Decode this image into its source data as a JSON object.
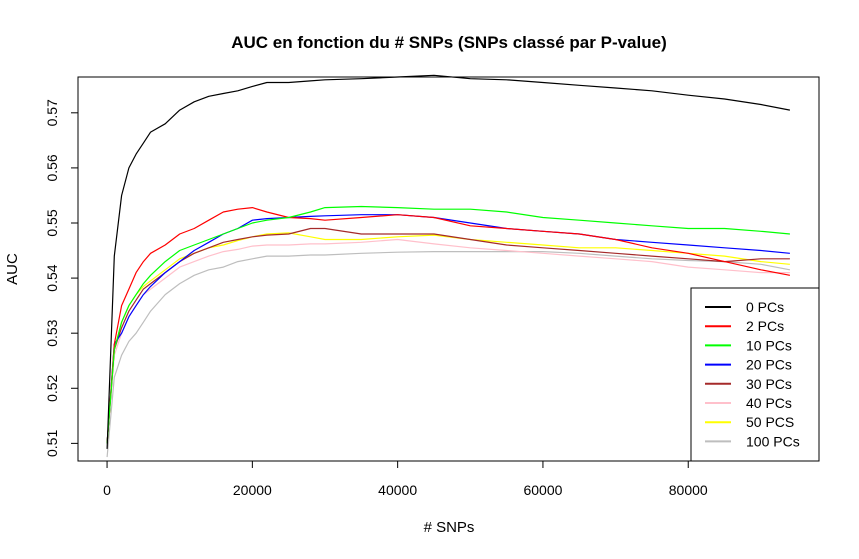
{
  "chart_data": {
    "type": "line",
    "title": "AUC en fonction du # SNPs (SNPs classé par P-value)",
    "xlabel": "# SNPs",
    "ylabel": "AUC",
    "xlim": [
      -4000,
      98000
    ],
    "ylim": [
      0.5068,
      0.5765
    ],
    "x_ticks": [
      0,
      20000,
      40000,
      60000,
      80000
    ],
    "y_ticks": [
      0.51,
      0.52,
      0.53,
      0.54,
      0.55,
      0.56,
      0.57
    ],
    "grid": false,
    "legend_position": "bottom-right",
    "x": [
      0,
      1000,
      2000,
      3000,
      4000,
      5000,
      6000,
      8000,
      10000,
      12000,
      14000,
      16000,
      18000,
      20000,
      22000,
      25000,
      28000,
      30000,
      35000,
      40000,
      45000,
      50000,
      55000,
      60000,
      65000,
      70000,
      75000,
      80000,
      85000,
      90000,
      94000
    ],
    "series": [
      {
        "name": "0 PCs",
        "color": "#000000",
        "values": [
          0.509,
          0.544,
          0.555,
          0.56,
          0.5625,
          0.5645,
          0.5665,
          0.568,
          0.5705,
          0.572,
          0.573,
          0.5735,
          0.574,
          0.5748,
          0.5755,
          0.5755,
          0.5758,
          0.576,
          0.5762,
          0.5765,
          0.5768,
          0.5762,
          0.576,
          0.5755,
          0.575,
          0.5745,
          0.574,
          0.5732,
          0.5725,
          0.5715,
          0.5705
        ]
      },
      {
        "name": "2 PCs",
        "color": "#ff0000",
        "values": [
          0.51,
          0.528,
          0.535,
          0.538,
          0.541,
          0.543,
          0.5445,
          0.546,
          0.548,
          0.549,
          0.5505,
          0.552,
          0.5525,
          0.5528,
          0.552,
          0.551,
          0.5508,
          0.5505,
          0.551,
          0.5515,
          0.551,
          0.5495,
          0.549,
          0.5485,
          0.548,
          0.547,
          0.5455,
          0.5445,
          0.543,
          0.5415,
          0.5405
        ]
      },
      {
        "name": "10 PCs",
        "color": "#00ff00",
        "values": [
          0.51,
          0.527,
          0.532,
          0.535,
          0.537,
          0.539,
          0.5405,
          0.543,
          0.545,
          0.546,
          0.547,
          0.548,
          0.549,
          0.55,
          0.5505,
          0.551,
          0.552,
          0.5528,
          0.553,
          0.5528,
          0.5525,
          0.5525,
          0.552,
          0.551,
          0.5505,
          0.55,
          0.5495,
          0.549,
          0.549,
          0.5485,
          0.548
        ]
      },
      {
        "name": "20 PCs",
        "color": "#0000ff",
        "values": [
          0.51,
          0.528,
          0.53,
          0.533,
          0.535,
          0.537,
          0.5385,
          0.541,
          0.543,
          0.545,
          0.5465,
          0.548,
          0.549,
          0.5505,
          0.5508,
          0.551,
          0.5512,
          0.5513,
          0.5515,
          0.5515,
          0.551,
          0.55,
          0.549,
          0.5485,
          0.548,
          0.547,
          0.5465,
          0.546,
          0.5455,
          0.545,
          0.5445
        ]
      },
      {
        "name": "30 PCs",
        "color": "#a52a2a",
        "values": [
          0.51,
          0.527,
          0.531,
          0.534,
          0.536,
          0.538,
          0.539,
          0.541,
          0.543,
          0.5445,
          0.5455,
          0.5465,
          0.547,
          0.5475,
          0.5478,
          0.548,
          0.549,
          0.549,
          0.548,
          0.548,
          0.548,
          0.547,
          0.546,
          0.5455,
          0.545,
          0.5445,
          0.544,
          0.5435,
          0.543,
          0.5435,
          0.5435
        ]
      },
      {
        "name": "40 PCs",
        "color": "#ffc0cb",
        "values": [
          0.51,
          0.526,
          0.53,
          0.533,
          0.535,
          0.537,
          0.538,
          0.54,
          0.542,
          0.543,
          0.544,
          0.5448,
          0.5452,
          0.5458,
          0.546,
          0.546,
          0.5462,
          0.5462,
          0.5465,
          0.547,
          0.5462,
          0.5455,
          0.545,
          0.5445,
          0.544,
          0.5435,
          0.543,
          0.542,
          0.5415,
          0.541,
          0.541
        ]
      },
      {
        "name": "50 PCS",
        "color": "#ffff00",
        "values": [
          0.51,
          0.527,
          0.532,
          0.535,
          0.537,
          0.5385,
          0.5395,
          0.5415,
          0.5435,
          0.5445,
          0.5455,
          0.546,
          0.5468,
          0.5475,
          0.548,
          0.5482,
          0.5475,
          0.547,
          0.547,
          0.5475,
          0.5478,
          0.547,
          0.5465,
          0.546,
          0.5455,
          0.5455,
          0.545,
          0.5445,
          0.544,
          0.543,
          0.5425
        ]
      },
      {
        "name": "100 PCs",
        "color": "#bebebe",
        "values": [
          0.5075,
          0.522,
          0.526,
          0.5285,
          0.53,
          0.532,
          0.534,
          0.537,
          0.539,
          0.5405,
          0.5415,
          0.542,
          0.543,
          0.5435,
          0.544,
          0.544,
          0.5442,
          0.5442,
          0.5445,
          0.5447,
          0.5448,
          0.5448,
          0.5448,
          0.5448,
          0.5445,
          0.544,
          0.5435,
          0.5432,
          0.543,
          0.5425,
          0.5415
        ]
      }
    ]
  }
}
